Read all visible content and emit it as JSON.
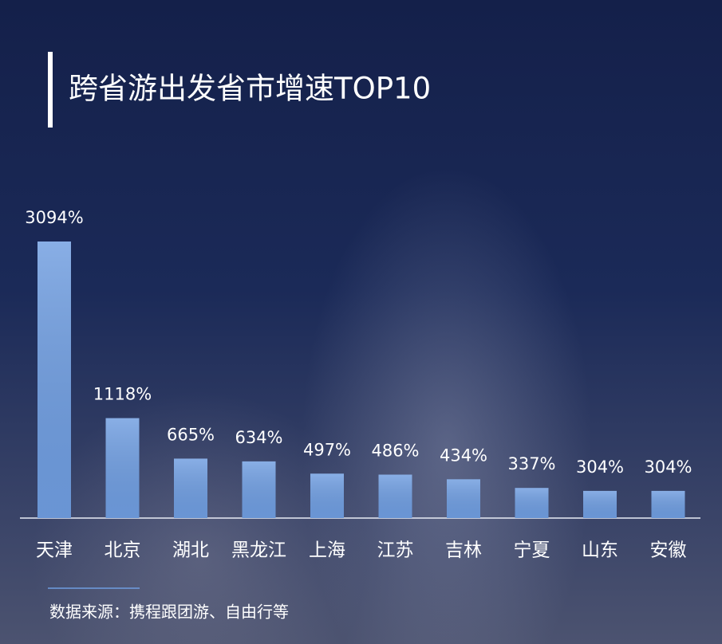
{
  "chart_data": {
    "type": "bar",
    "title": "跨省游出发省市增速TOP10",
    "categories": [
      "天津",
      "北京",
      "湖北",
      "黑龙江",
      "上海",
      "江苏",
      "吉林",
      "宁夏",
      "山东",
      "安徽"
    ],
    "values": [
      3094,
      1118,
      665,
      634,
      497,
      486,
      434,
      337,
      304,
      304
    ],
    "value_labels": [
      "3094%",
      "1118%",
      "665%",
      "634%",
      "497%",
      "486%",
      "434%",
      "337%",
      "304%",
      "304%"
    ],
    "color": "#6f9de0",
    "source": "数据来源：携程跟团游、自由行等"
  }
}
